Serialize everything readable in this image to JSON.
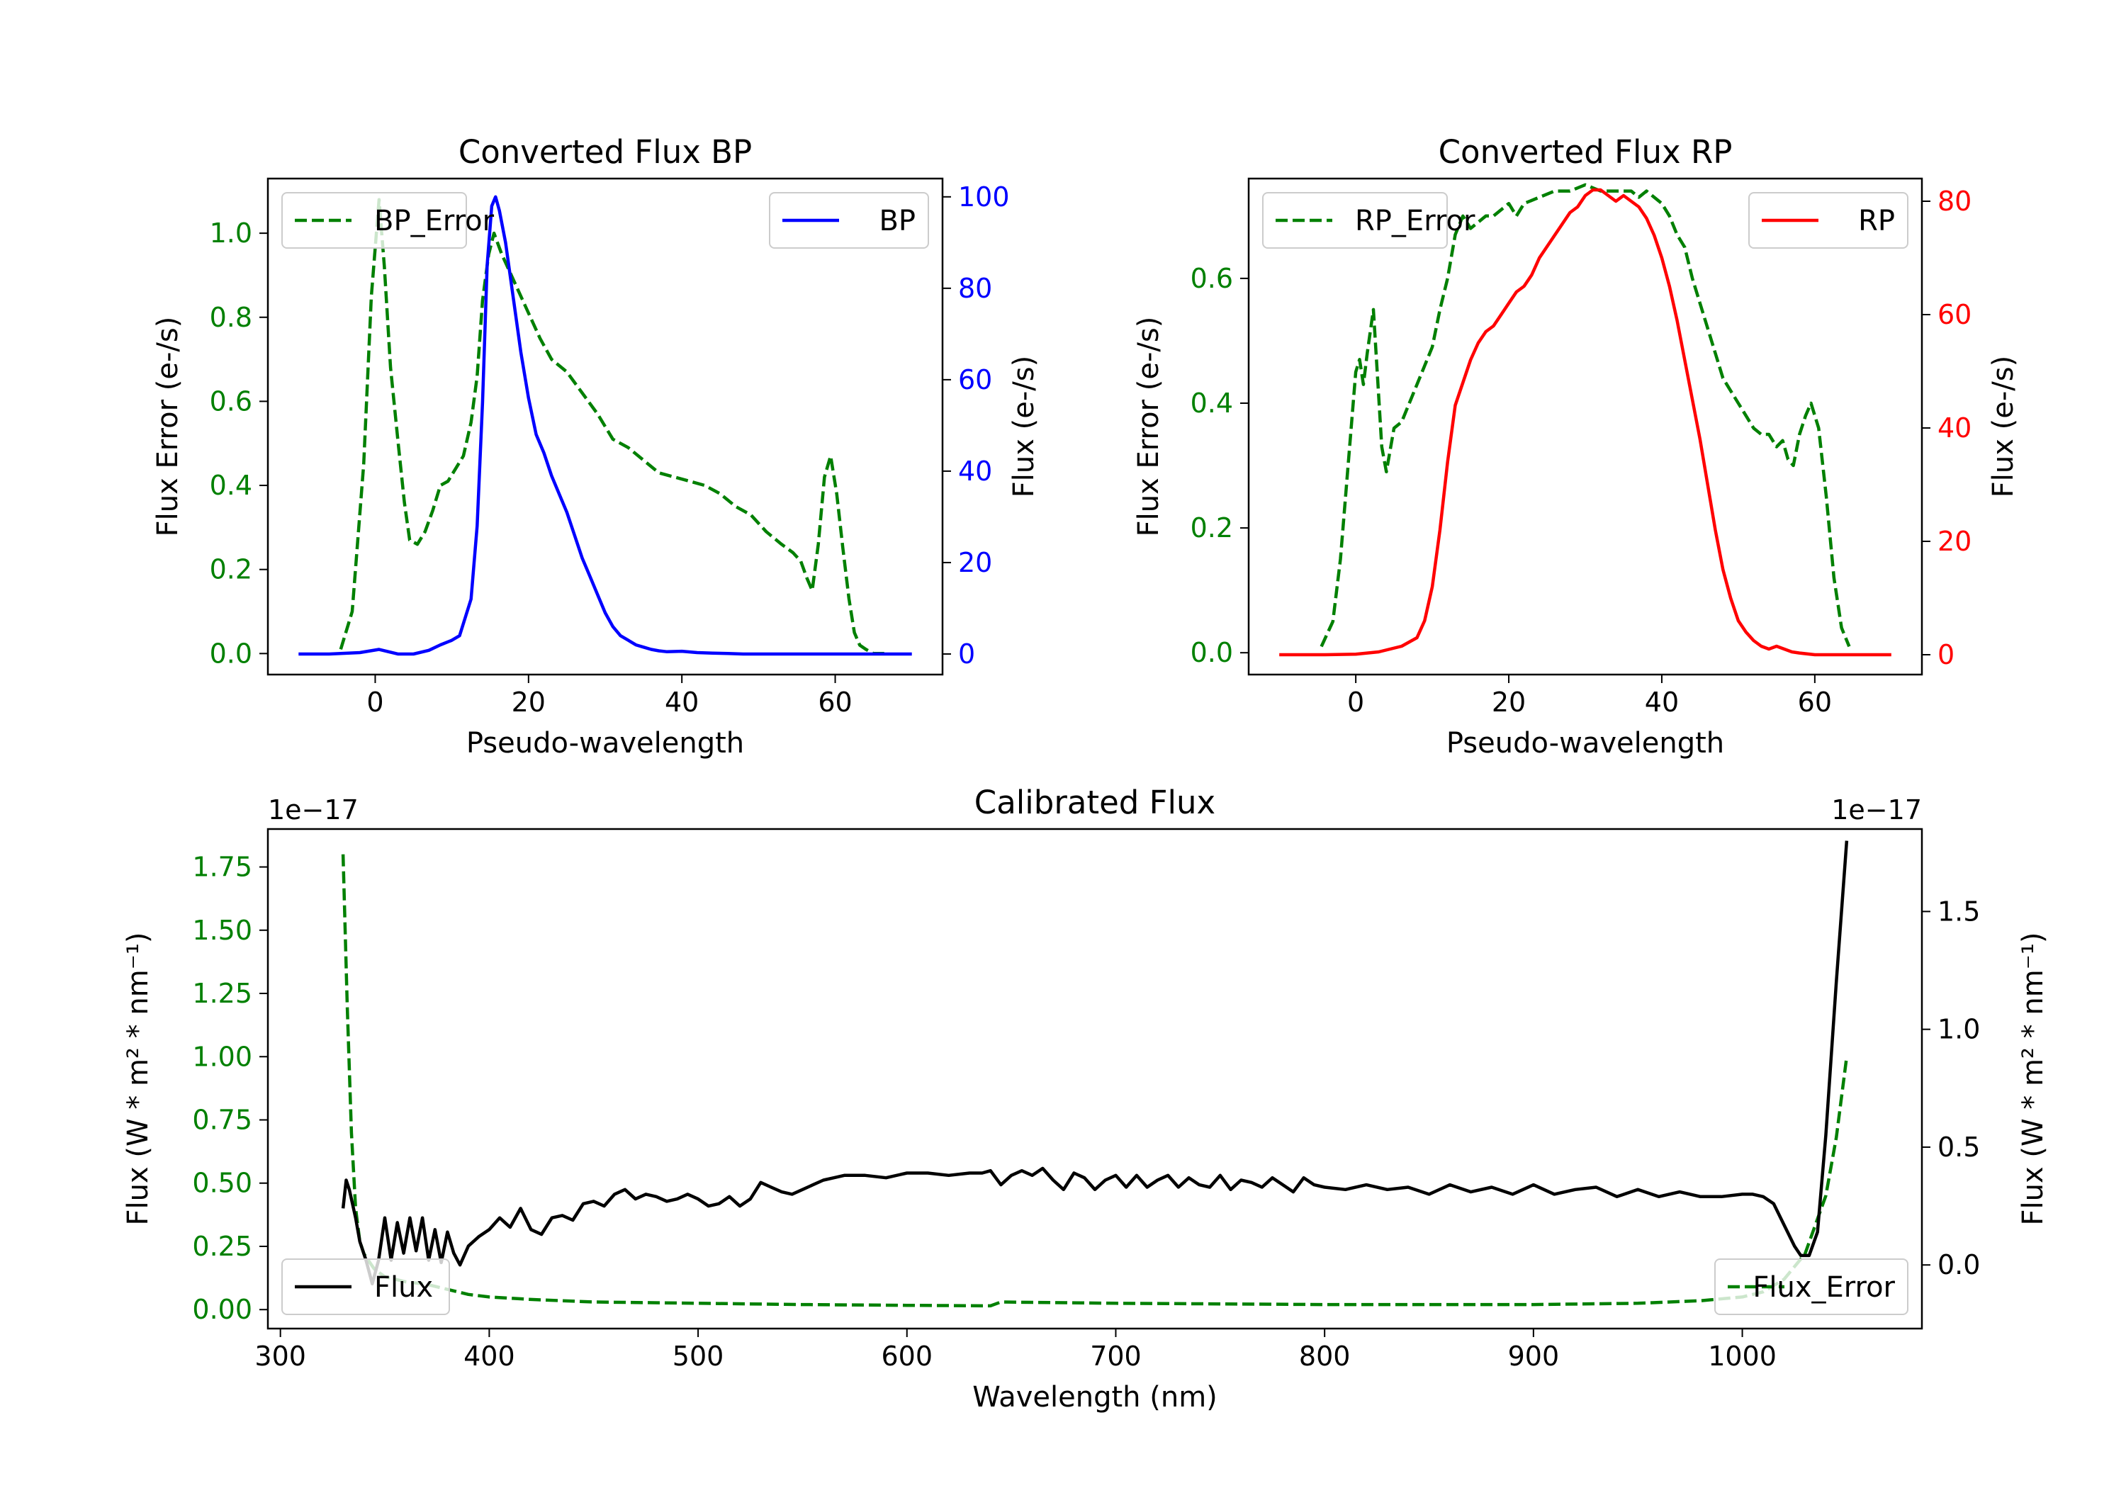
{
  "chart_data": [
    {
      "type": "line",
      "title": "Converted Flux BP",
      "xlabel": "Pseudo-wavelength",
      "ylabel_left": "Flux Error (e-/s)",
      "ylabel_right": "Flux (e-/s)",
      "xlim": [
        -14,
        74
      ],
      "ylim_left": [
        -0.05,
        1.13
      ],
      "ylim_right": [
        -4.5,
        104
      ],
      "xticks": [
        0,
        20,
        40,
        60
      ],
      "yticks_left": [
        0.0,
        0.2,
        0.4,
        0.6,
        0.8,
        1.0
      ],
      "yticks_right": [
        0,
        20,
        40,
        60,
        80,
        100
      ],
      "colors": {
        "left": "#008000",
        "right": "#0000ff"
      },
      "series": [
        {
          "name": "BP_Error",
          "axis": "left",
          "style": "dashed",
          "color": "#008000",
          "legend": "upper left",
          "x": [
            -4.5,
            -3,
            -1.5,
            -0.5,
            0.5,
            1.2,
            2,
            3,
            3.8,
            4.5,
            5.5,
            6.5,
            7.5,
            8.5,
            9.5,
            10.5,
            11.5,
            12.5,
            13.3,
            14,
            14.8,
            15.5,
            16.5,
            17.5,
            18.5,
            19.5,
            20.5,
            21.5,
            23,
            25,
            27,
            29,
            31,
            33,
            35,
            37,
            39,
            41,
            43,
            45,
            47,
            49,
            51,
            53,
            54.5,
            55.5,
            56.3,
            57,
            57.8,
            58.6,
            59.4,
            60.2,
            61,
            61.8,
            62.5,
            63.2,
            64,
            65,
            66,
            67
          ],
          "values": [
            0.01,
            0.1,
            0.45,
            0.85,
            1.08,
            0.92,
            0.68,
            0.5,
            0.36,
            0.27,
            0.26,
            0.29,
            0.34,
            0.4,
            0.41,
            0.44,
            0.47,
            0.55,
            0.66,
            0.84,
            0.95,
            1.0,
            0.95,
            0.91,
            0.87,
            0.83,
            0.79,
            0.75,
            0.7,
            0.67,
            0.62,
            0.57,
            0.51,
            0.49,
            0.46,
            0.43,
            0.42,
            0.41,
            0.4,
            0.38,
            0.35,
            0.33,
            0.29,
            0.26,
            0.24,
            0.22,
            0.18,
            0.15,
            0.26,
            0.42,
            0.47,
            0.38,
            0.25,
            0.13,
            0.05,
            0.02,
            0.01,
            0.0,
            0.0,
            0.0
          ]
        },
        {
          "name": "BP",
          "axis": "right",
          "style": "solid",
          "color": "#0000ff",
          "legend": "upper right",
          "x": [
            -10,
            -6,
            -2,
            0.5,
            3,
            5,
            7,
            8.5,
            10,
            11,
            12.5,
            13.3,
            14,
            14.6,
            15.2,
            15.7,
            16.2,
            17,
            18,
            19,
            20,
            21,
            22,
            23,
            24,
            25,
            26,
            27,
            28,
            29,
            30,
            31,
            32,
            33,
            34,
            35,
            36,
            37,
            38,
            40,
            42,
            44,
            46,
            48,
            50,
            54,
            58,
            62,
            66,
            70
          ],
          "values": [
            0,
            0,
            0.3,
            1,
            0,
            0,
            0.8,
            2,
            3,
            4,
            12,
            28,
            55,
            85,
            98,
            100,
            97,
            90,
            78,
            66,
            56,
            48,
            44,
            39,
            35,
            31,
            26,
            21,
            17,
            13,
            9,
            6,
            4,
            3,
            2,
            1.5,
            1,
            0.7,
            0.5,
            0.6,
            0.3,
            0.2,
            0.1,
            0,
            0,
            0,
            0,
            0,
            0,
            0
          ]
        }
      ]
    },
    {
      "type": "line",
      "title": "Converted Flux RP",
      "xlabel": "Pseudo-wavelength",
      "ylabel_left": "Flux Error (e-/s)",
      "ylabel_right": "Flux (e-/s)",
      "xlim": [
        -14,
        74
      ],
      "ylim_left": [
        -0.035,
        0.76
      ],
      "ylim_right": [
        -3.5,
        84
      ],
      "xticks": [
        0,
        20,
        40,
        60
      ],
      "yticks_left": [
        0.0,
        0.2,
        0.4,
        0.6
      ],
      "yticks_right": [
        0,
        20,
        40,
        60,
        80
      ],
      "colors": {
        "left": "#008000",
        "right": "#ff0000"
      },
      "series": [
        {
          "name": "RP_Error",
          "axis": "left",
          "style": "dashed",
          "color": "#008000",
          "legend": "upper left",
          "x": [
            -4.5,
            -3,
            -2,
            -1,
            0,
            0.5,
            1,
            1.5,
            2.3,
            2.8,
            3.4,
            4,
            5,
            6,
            7,
            8,
            9,
            10,
            11,
            12,
            13,
            14,
            15,
            16,
            17,
            18,
            19,
            20,
            21,
            22,
            24,
            26,
            28,
            30,
            32,
            34,
            36,
            37,
            38,
            39,
            40,
            41,
            42,
            43,
            44,
            45,
            46,
            47,
            48,
            49,
            50,
            51,
            52,
            53,
            54,
            55,
            55.8,
            56.5,
            57.2,
            58,
            58.8,
            59.5,
            60.5,
            61.5,
            62.5,
            63.5,
            64.5
          ],
          "values": [
            0.01,
            0.05,
            0.15,
            0.3,
            0.45,
            0.47,
            0.43,
            0.48,
            0.55,
            0.45,
            0.33,
            0.29,
            0.36,
            0.37,
            0.4,
            0.43,
            0.46,
            0.49,
            0.55,
            0.6,
            0.67,
            0.7,
            0.68,
            0.69,
            0.7,
            0.7,
            0.71,
            0.72,
            0.7,
            0.72,
            0.73,
            0.74,
            0.74,
            0.75,
            0.74,
            0.74,
            0.74,
            0.73,
            0.74,
            0.73,
            0.72,
            0.7,
            0.67,
            0.65,
            0.6,
            0.56,
            0.52,
            0.48,
            0.44,
            0.42,
            0.4,
            0.38,
            0.36,
            0.35,
            0.35,
            0.33,
            0.34,
            0.31,
            0.3,
            0.35,
            0.38,
            0.4,
            0.36,
            0.25,
            0.12,
            0.04,
            0.01
          ]
        },
        {
          "name": "RP",
          "axis": "right",
          "style": "solid",
          "color": "#ff0000",
          "legend": "upper right",
          "x": [
            -10,
            -4,
            0,
            3,
            6,
            8,
            9,
            10,
            11,
            12,
            13,
            14,
            15,
            16,
            17,
            18,
            19,
            20,
            21,
            22,
            23,
            24,
            25,
            26,
            27,
            28,
            29,
            30,
            31,
            32,
            33,
            34,
            35,
            36,
            37,
            38,
            39,
            40,
            41,
            42,
            43,
            44,
            45,
            46,
            47,
            48,
            49,
            50,
            51,
            52,
            53,
            54,
            55,
            56,
            57,
            58,
            60,
            65,
            70
          ],
          "values": [
            0,
            0,
            0.1,
            0.5,
            1.5,
            3,
            6,
            12,
            22,
            34,
            44,
            48,
            52,
            55,
            57,
            58,
            60,
            62,
            64,
            65,
            67,
            70,
            72,
            74,
            76,
            78,
            79,
            81,
            82,
            82,
            81,
            80,
            81,
            80,
            79,
            77,
            74,
            70,
            65,
            59,
            52,
            45,
            38,
            30,
            22,
            15,
            10,
            6,
            4,
            2.5,
            1.5,
            1,
            1.5,
            1,
            0.5,
            0.3,
            0,
            0,
            0
          ]
        }
      ]
    },
    {
      "type": "line",
      "title": "Calibrated Flux",
      "xlabel": "Wavelength (nm)",
      "ylabel_left": "Flux (W * m² * nm⁻¹)",
      "ylabel_right": "Flux (W * m² * nm⁻¹)",
      "offset_left": "1e−17",
      "offset_right": "1e−17",
      "xlim": [
        294,
        1086
      ],
      "ylim_left": [
        -0.075,
        1.9
      ],
      "ylim_right": [
        -0.27,
        1.85
      ],
      "xticks": [
        300,
        400,
        500,
        600,
        700,
        800,
        900,
        1000
      ],
      "yticks_left": [
        0.0,
        0.25,
        0.5,
        0.75,
        1.0,
        1.25,
        1.5,
        1.75
      ],
      "ytick_labels_left": [
        "0.00",
        "0.25",
        "0.50",
        "0.75",
        "1.00",
        "1.25",
        "1.50",
        "1.75"
      ],
      "yticks_right": [
        0.0,
        0.5,
        1.0,
        1.5
      ],
      "colors": {
        "left": "#008000",
        "right": "#000000"
      },
      "series": [
        {
          "name": "Flux_Error",
          "axis": "left",
          "style": "dashed",
          "color": "#008000",
          "legend": "lower right",
          "x": [
            330,
            332,
            334,
            336,
            338,
            340,
            345,
            350,
            360,
            370,
            380,
            390,
            400,
            420,
            450,
            500,
            550,
            600,
            640,
            645,
            700,
            800,
            900,
            950,
            980,
            1000,
            1010,
            1020,
            1030,
            1040,
            1045,
            1050
          ],
          "values": [
            1.8,
            1.2,
            0.7,
            0.4,
            0.27,
            0.22,
            0.16,
            0.13,
            0.11,
            0.1,
            0.08,
            0.06,
            0.05,
            0.04,
            0.03,
            0.025,
            0.02,
            0.017,
            0.015,
            0.03,
            0.025,
            0.02,
            0.02,
            0.025,
            0.035,
            0.05,
            0.07,
            0.12,
            0.22,
            0.45,
            0.68,
            1.0
          ]
        },
        {
          "name": "Flux",
          "axis": "right",
          "style": "solid",
          "color": "#000000",
          "legend": "lower left",
          "x": [
            330,
            331.5,
            333,
            336,
            338,
            341,
            344,
            347,
            350,
            353,
            356,
            359,
            362,
            365,
            368,
            371,
            374,
            377,
            380,
            383,
            386,
            390,
            395,
            400,
            405,
            410,
            415,
            420,
            425,
            430,
            435,
            440,
            445,
            450,
            455,
            460,
            465,
            470,
            475,
            480,
            485,
            490,
            495,
            500,
            505,
            510,
            515,
            520,
            525,
            530,
            535,
            540,
            545,
            550,
            555,
            560,
            565,
            570,
            580,
            590,
            600,
            610,
            620,
            630,
            636,
            640,
            645,
            650,
            655,
            660,
            665,
            670,
            675,
            680,
            685,
            690,
            695,
            700,
            705,
            710,
            715,
            720,
            725,
            730,
            735,
            740,
            745,
            750,
            755,
            760,
            765,
            770,
            775,
            780,
            785,
            790,
            795,
            800,
            810,
            820,
            830,
            840,
            850,
            860,
            870,
            880,
            890,
            900,
            910,
            920,
            930,
            940,
            950,
            960,
            970,
            980,
            990,
            1000,
            1005,
            1010,
            1015,
            1020,
            1025,
            1028,
            1032,
            1036,
            1040,
            1045,
            1050
          ],
          "values": [
            0.24,
            0.36,
            0.32,
            0.2,
            0.1,
            0.02,
            -0.08,
            0.02,
            0.2,
            0.02,
            0.18,
            0.05,
            0.2,
            0.06,
            0.2,
            0.02,
            0.15,
            0.01,
            0.14,
            0.05,
            0.0,
            0.08,
            0.12,
            0.15,
            0.2,
            0.16,
            0.24,
            0.15,
            0.13,
            0.2,
            0.21,
            0.19,
            0.26,
            0.27,
            0.25,
            0.3,
            0.32,
            0.28,
            0.3,
            0.29,
            0.27,
            0.28,
            0.3,
            0.28,
            0.25,
            0.26,
            0.29,
            0.25,
            0.28,
            0.35,
            0.33,
            0.31,
            0.3,
            0.32,
            0.34,
            0.36,
            0.37,
            0.38,
            0.38,
            0.37,
            0.39,
            0.39,
            0.38,
            0.39,
            0.39,
            0.4,
            0.34,
            0.38,
            0.4,
            0.38,
            0.41,
            0.36,
            0.32,
            0.39,
            0.37,
            0.32,
            0.36,
            0.38,
            0.33,
            0.38,
            0.33,
            0.36,
            0.38,
            0.33,
            0.37,
            0.34,
            0.33,
            0.38,
            0.32,
            0.36,
            0.35,
            0.33,
            0.37,
            0.34,
            0.31,
            0.37,
            0.34,
            0.33,
            0.32,
            0.34,
            0.32,
            0.33,
            0.3,
            0.34,
            0.31,
            0.33,
            0.3,
            0.34,
            0.3,
            0.32,
            0.33,
            0.29,
            0.32,
            0.29,
            0.31,
            0.29,
            0.29,
            0.3,
            0.3,
            0.29,
            0.26,
            0.17,
            0.08,
            0.04,
            0.04,
            0.14,
            0.55,
            1.2,
            1.8
          ]
        }
      ]
    }
  ]
}
